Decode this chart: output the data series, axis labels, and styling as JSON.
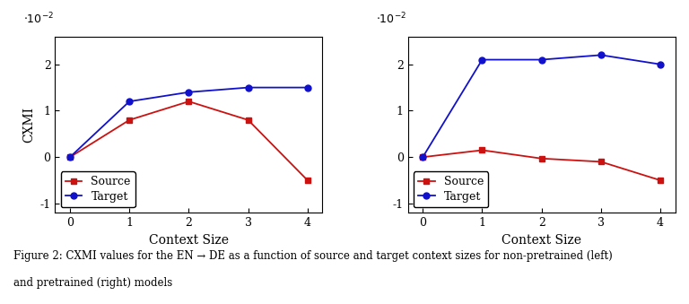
{
  "x": [
    0,
    1,
    2,
    3,
    4
  ],
  "left_source": [
    0.0,
    0.8,
    1.2,
    0.8,
    -0.5
  ],
  "left_target": [
    0.0,
    1.2,
    1.4,
    1.5,
    1.5
  ],
  "right_source": [
    0.0,
    0.15,
    -0.03,
    -0.1,
    -0.5
  ],
  "right_target": [
    0.0,
    2.1,
    2.1,
    2.2,
    2.0
  ],
  "source_color": "#cc1111",
  "target_color": "#1111cc",
  "xlabel": "Context Size",
  "ylabel": "CXMI",
  "left_ylim": [
    -1.2,
    2.6
  ],
  "right_ylim": [
    -1.2,
    2.6
  ],
  "yticks": [
    -1,
    0,
    1,
    2
  ],
  "scale_label": "$\\cdot10^{-2}$",
  "caption_line1": "Figure 2: CXMI values for the EN → DE as a function of source and target context sizes for non-pretrained (left)",
  "caption_line2": "and pretrained (right) models"
}
